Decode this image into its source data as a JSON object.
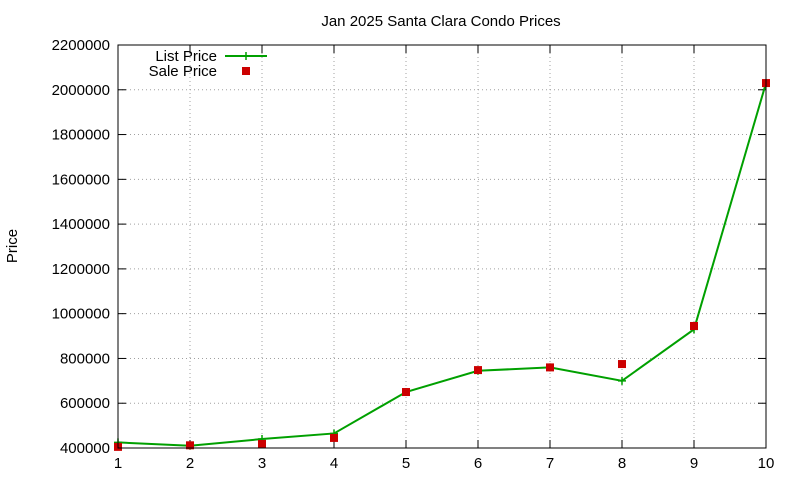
{
  "chart_data": {
    "type": "line",
    "title": "Jan 2025 Santa Clara Condo Prices",
    "xlabel": "",
    "ylabel": "Price",
    "x": [
      1,
      2,
      3,
      4,
      5,
      6,
      7,
      8,
      9,
      10
    ],
    "xlim": [
      1,
      10
    ],
    "ylim": [
      400000,
      2200000
    ],
    "yticks": [
      400000,
      600000,
      800000,
      1000000,
      1200000,
      1400000,
      1600000,
      1800000,
      2000000,
      2200000
    ],
    "grid": true,
    "legend_position": "top-left",
    "series": [
      {
        "name": "List Price",
        "style": "line+cross",
        "color": "#00a000",
        "values": [
          425000,
          410000,
          440000,
          465000,
          650000,
          745000,
          760000,
          700000,
          930000,
          2030000
        ]
      },
      {
        "name": "Sale Price",
        "style": "square-points",
        "color": "#cc0000",
        "values": [
          405000,
          412000,
          418000,
          445000,
          650000,
          748000,
          760000,
          775000,
          945000,
          2030000
        ]
      }
    ]
  }
}
